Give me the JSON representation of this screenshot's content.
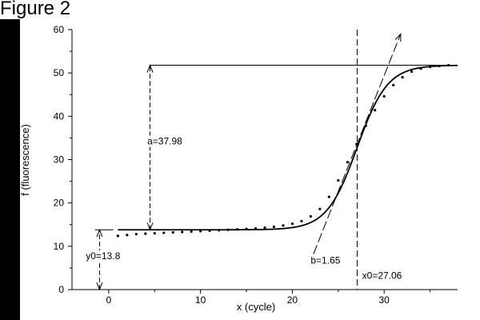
{
  "figure_label": "Figure 2",
  "chart_data": {
    "type": "line",
    "title": "",
    "xlabel": "x (cycle)",
    "ylabel": "f (fluorescence)",
    "xlim": [
      -4,
      38
    ],
    "ylim": [
      0,
      60
    ],
    "xticks": [
      0,
      10,
      20,
      30
    ],
    "yticks": [
      0,
      10,
      20,
      30,
      40,
      50,
      60
    ],
    "grid": false,
    "legend": "none",
    "fit_parameters": {
      "y0": 13.8,
      "a": 37.98,
      "x0": 27.06,
      "b": 1.65
    },
    "series": [
      {
        "kind": "observed-points",
        "x": [
          1,
          2,
          3,
          4,
          5,
          6,
          7,
          8,
          9,
          10,
          11,
          12,
          13,
          14,
          15,
          16,
          17,
          18,
          19,
          20,
          21,
          22,
          23,
          24,
          25,
          26,
          27,
          28,
          29,
          30,
          31,
          32,
          33,
          34,
          35,
          36,
          37
        ],
        "y": [
          12.4,
          12.6,
          12.8,
          12.9,
          13.0,
          13.1,
          13.2,
          13.3,
          13.4,
          13.5,
          13.6,
          13.7,
          13.8,
          13.9,
          14.0,
          14.1,
          14.3,
          14.5,
          14.8,
          15.2,
          15.8,
          16.9,
          18.6,
          21.4,
          25.2,
          29.4,
          33.6,
          37.8,
          41.4,
          44.6,
          47.2,
          49.0,
          50.3,
          51.0,
          51.4,
          51.6,
          51.8
        ]
      },
      {
        "kind": "sigmoid-fit",
        "x_start": 1,
        "x_end": 38
      }
    ],
    "annotations": [
      {
        "text": "a=37.98",
        "x": 4.2,
        "y": 33.5
      },
      {
        "text": "y0=13.8",
        "x": -2.5,
        "y": 7
      },
      {
        "text": "b=1.65",
        "x": 22,
        "y": 6
      },
      {
        "text": "x0=27.06",
        "x": 27.6,
        "y": 2.5
      }
    ],
    "guides": {
      "asymptote_line": {
        "x": [
          4.5,
          38
        ],
        "y": 51.78
      },
      "baseline_mark": {
        "x": [
          -1.5,
          0.5
        ],
        "y": 13.8
      },
      "inflection_line_x": 27.06,
      "a_arrow": {
        "x": 4.5,
        "y": [
          13.8,
          51.78
        ]
      },
      "y0_arrow": {
        "x": -1.0,
        "y": [
          0,
          13.8
        ]
      },
      "tangent": {
        "x": [
          22.3,
          31.8
        ],
        "y": [
          8.2,
          59.0
        ]
      }
    },
    "colors": {
      "background": "#ffffff",
      "frame": "#000000",
      "ink": "#000000"
    }
  }
}
